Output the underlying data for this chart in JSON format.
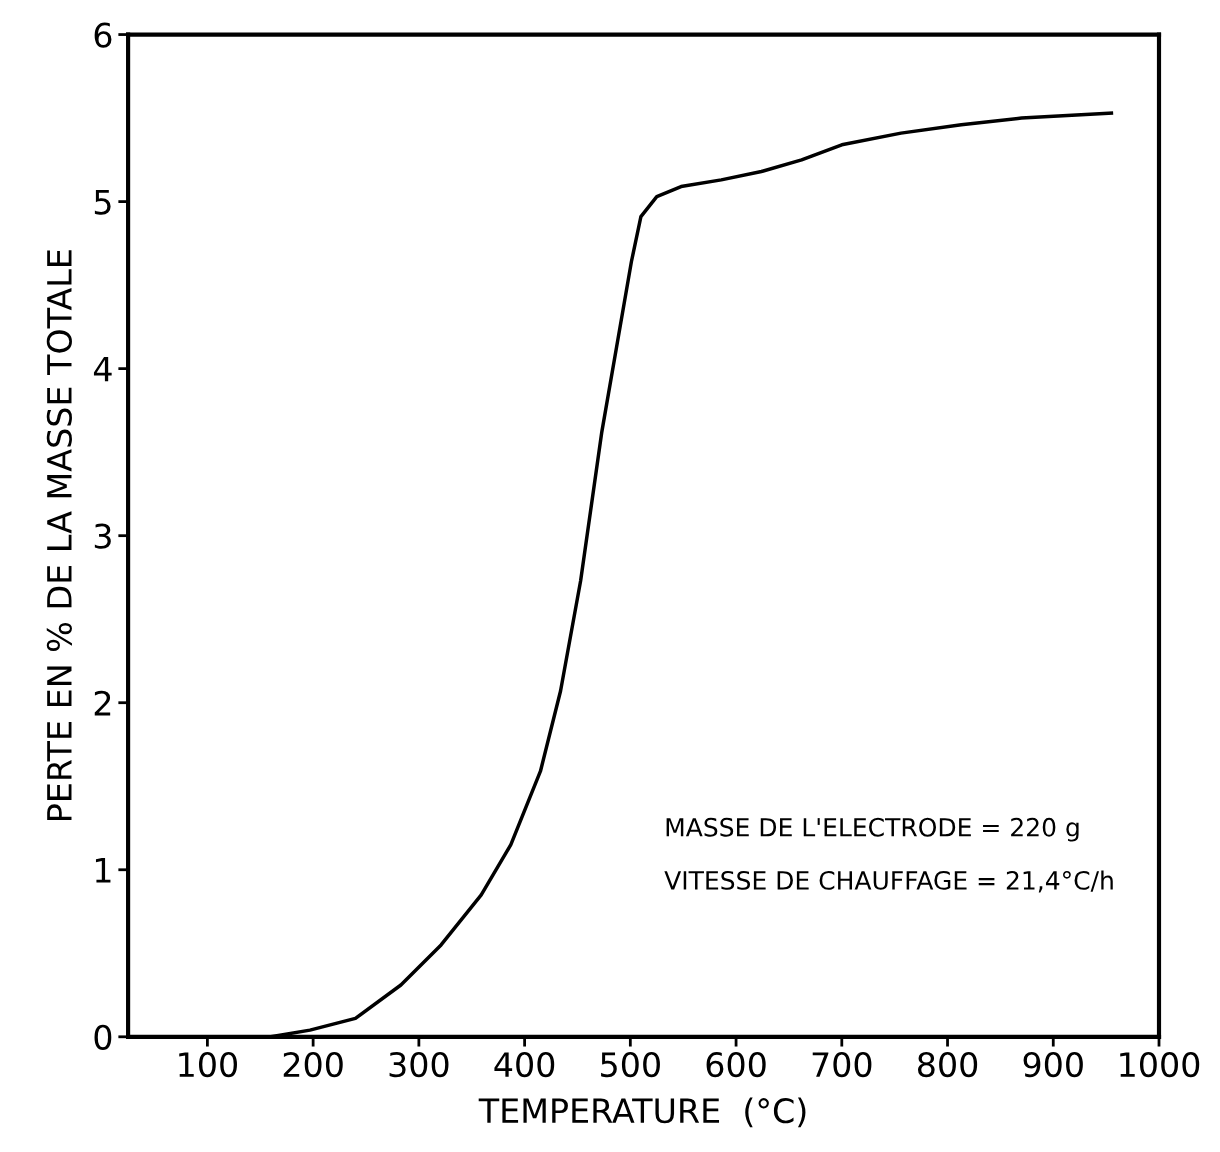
{
  "chart_data": {
    "type": "line",
    "xlabel": "TEMPERATURE  (°C)",
    "ylabel": "PERTE EN % DE LA MASSE TOTALE",
    "x": [
      160,
      197,
      240,
      283,
      321,
      359,
      387,
      415,
      434,
      453,
      473,
      487,
      501,
      510,
      525,
      548,
      586,
      624,
      662,
      700,
      756,
      813,
      870,
      955
    ],
    "series": [
      {
        "color": "#000000",
        "values": [
          0,
          0.04,
          0.11,
          0.31,
          0.55,
          0.85,
          1.15,
          1.59,
          2.07,
          2.73,
          3.62,
          4.13,
          4.64,
          4.91,
          5.03,
          5.09,
          5.13,
          5.18,
          5.25,
          5.34,
          5.41,
          5.46,
          5.5,
          5.53
        ]
      }
    ],
    "xlim": [
      25,
      1000
    ],
    "ylim": [
      0,
      6
    ],
    "xticks": [
      100,
      200,
      300,
      400,
      500,
      600,
      700,
      800,
      900,
      1000
    ],
    "yticks": [
      0,
      1,
      2,
      3,
      4,
      5,
      6
    ],
    "grid": false,
    "marker": "none",
    "line_style": "solid",
    "annotations": [
      "MASSE DE L'ELECTRODE = 220 g",
      "VITESSE DE CHAUFFAGE = 21,4°C/h"
    ]
  }
}
